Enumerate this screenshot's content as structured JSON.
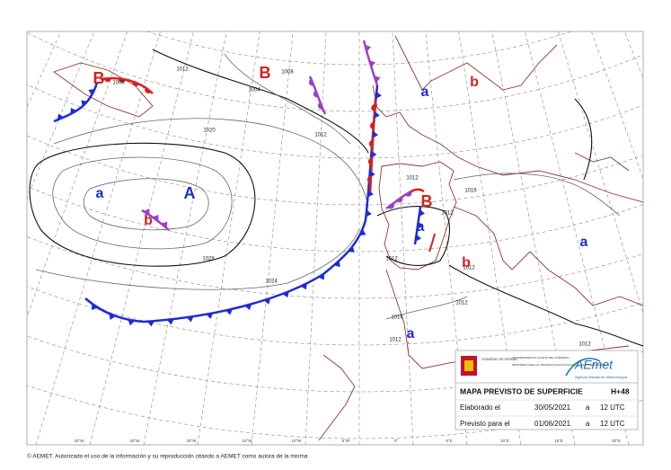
{
  "map": {
    "pressure_centers": [
      "B",
      "B",
      "a",
      "b",
      "a",
      "A",
      "b",
      "B",
      "a",
      "b",
      "a",
      "a"
    ],
    "isobar_labels": [
      "1012",
      "1008",
      "1004",
      "1008",
      "1012",
      "1020",
      "1028",
      "1024",
      "1012",
      "1012",
      "1012",
      "1012",
      "1016",
      "1012",
      "1012",
      "1016",
      "1012"
    ],
    "longitudes": [
      "30°W",
      "25°W",
      "20°W",
      "15°W",
      "10°W",
      "5°W",
      "0°",
      "5°E",
      "10°E",
      "15°E",
      "20°E"
    ],
    "info": {
      "gov": [
        "GOBIERNO DE ESPAÑA",
        "VICEPRESIDENCIA CUARTA DEL GOBIERNO",
        "MINISTERIO PARA LA TRANSICIÓN ECOLÓGICA Y EL RETO DEMOGRÁFICO"
      ],
      "brand": "AEmet",
      "brand_sub": "Agencia Estatal de Meteorología",
      "title": "MAPA PREVISTO DE SUPERFICIE",
      "run": "H+48",
      "rows": [
        [
          "Elaborado el",
          "30/05/2021",
          "a",
          "12 UTC"
        ],
        [
          "Previsto para el",
          "01/06/2021",
          "a",
          "12 UTC"
        ]
      ]
    },
    "footer": "© AEMET. Autorizado el uso de la información y su reproducción citando a AEMET como autora de la misma"
  }
}
